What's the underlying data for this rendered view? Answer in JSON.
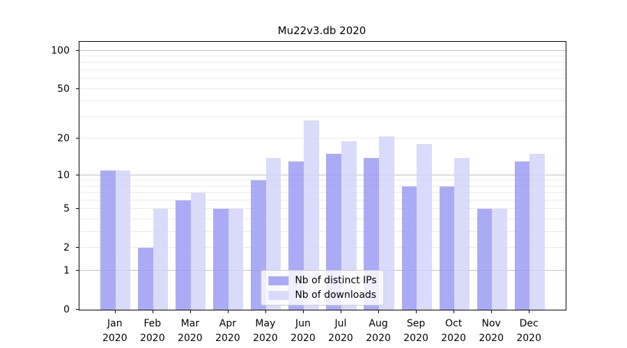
{
  "chart_data": {
    "type": "bar",
    "title": "Mu22v3.db 2020",
    "categories": [
      "Jan",
      "Feb",
      "Mar",
      "Apr",
      "May",
      "Jun",
      "Jul",
      "Aug",
      "Sep",
      "Oct",
      "Nov",
      "Dec"
    ],
    "year": "2020",
    "series": [
      {
        "name": "Nb of distinct IPs",
        "color": "rgba(155,155,243,0.85)",
        "values": [
          11,
          2,
          6,
          5,
          9,
          13,
          15,
          14,
          8,
          8,
          5,
          13
        ]
      },
      {
        "name": "Nb of downloads",
        "color": "rgba(212,212,250,0.85)",
        "values": [
          11,
          5,
          7,
          5,
          14,
          28,
          19,
          21,
          18,
          14,
          5,
          15
        ]
      }
    ],
    "yscale": "log1p",
    "ylim": [
      0,
      117
    ],
    "yticks": [
      0,
      1,
      2,
      5,
      10,
      20,
      50,
      100
    ],
    "major_gridlines": [
      1,
      10,
      100
    ],
    "minor_gridlines": [
      2,
      3,
      4,
      5,
      6,
      7,
      8,
      9,
      20,
      30,
      40,
      50,
      60,
      70,
      80,
      90
    ],
    "grid": true,
    "legend_position": "lower center",
    "bar_width_fraction": 0.4
  },
  "colors": {
    "background": "#ffffff",
    "spine": "#000000",
    "major_grid": "#c0c0c0",
    "minor_grid": "#ebebeb",
    "text": "#000000",
    "legend_border": "#cccccc",
    "legend_bg": "rgba(255,255,255,0.8)"
  }
}
